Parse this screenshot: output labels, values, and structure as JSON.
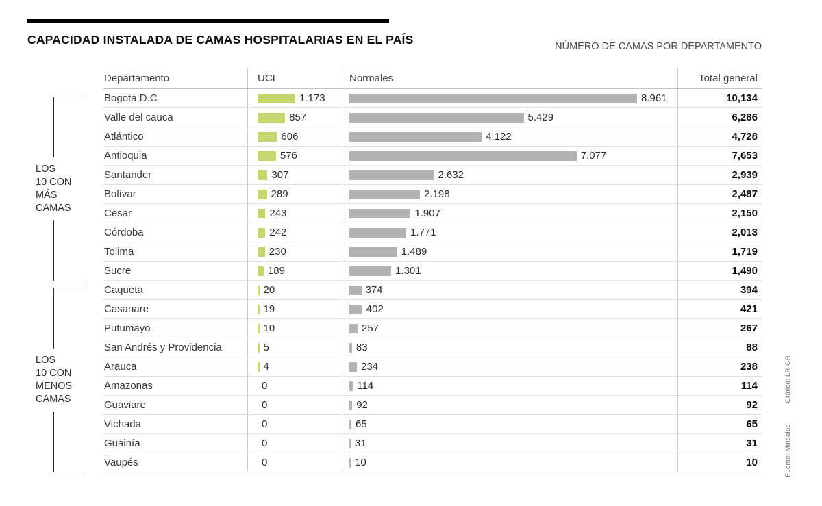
{
  "header": {
    "title": "CAPACIDAD INSTALADA DE CAMAS HOSPITALARIAS EN EL PAÍS",
    "subtitle": "NÚMERO DE CAMAS POR DEPARTAMENTO"
  },
  "columns": {
    "departamento": "Departamento",
    "uci": "UCI",
    "normales": "Normales",
    "total": "Total general"
  },
  "groups": [
    {
      "id": "most",
      "label_lines": [
        "LOS",
        "10 CON",
        "MÁS",
        "CAMAS"
      ],
      "rows": [
        1,
        10
      ]
    },
    {
      "id": "least",
      "label_lines": [
        "LOS",
        "10 CON",
        "MENOS",
        "CAMAS"
      ],
      "rows": [
        11,
        20
      ]
    }
  ],
  "credits": {
    "fuente": "Fuente: Minsalud",
    "grafico": "Gráfico: LR-GR"
  },
  "colors": {
    "uci_bar": "#c5d76e",
    "normales_bar": "#b3b3b3",
    "title_rule": "#000000"
  },
  "chart_data": {
    "type": "bar",
    "title": "CAPACIDAD INSTALADA DE CAMAS HOSPITALARIAS EN EL PAÍS",
    "subtitle": "NÚMERO DE CAMAS POR DEPARTAMENTO",
    "legend_position": "table-columns",
    "categories": [
      "Bogotá D.C",
      "Valle del cauca",
      "Atlántico",
      "Antioquia",
      "Santander",
      "Bolívar",
      "Cesar",
      "Córdoba",
      "Tolima",
      "Sucre",
      "Caquetá",
      "Casanare",
      "Putumayo",
      "San Andrés y Providencia",
      "Arauca",
      "Amazonas",
      "Guaviare",
      "Vichada",
      "Guainía",
      "Vaupés"
    ],
    "series": [
      {
        "name": "UCI",
        "values": [
          1173,
          857,
          606,
          576,
          307,
          289,
          243,
          242,
          230,
          189,
          20,
          19,
          10,
          5,
          4,
          0,
          0,
          0,
          0,
          0
        ]
      },
      {
        "name": "Normales",
        "values": [
          8961,
          5429,
          4122,
          7077,
          2632,
          2198,
          1907,
          1771,
          1489,
          1301,
          374,
          402,
          257,
          83,
          234,
          114,
          92,
          65,
          31,
          10
        ]
      }
    ],
    "totals": [
      10134,
      6286,
      4728,
      7653,
      2939,
      2487,
      2150,
      2013,
      1719,
      1490,
      394,
      421,
      267,
      88,
      238,
      114,
      92,
      65,
      31,
      10
    ],
    "rows": [
      {
        "departamento": "Bogotá D.C",
        "uci": 1173,
        "uci_label": "1.173",
        "normales": 8961,
        "normales_label": "8.961",
        "total": 10134,
        "total_label": "10,134"
      },
      {
        "departamento": "Valle del cauca",
        "uci": 857,
        "uci_label": "857",
        "normales": 5429,
        "normales_label": "5.429",
        "total": 6286,
        "total_label": "6,286"
      },
      {
        "departamento": "Atlántico",
        "uci": 606,
        "uci_label": "606",
        "normales": 4122,
        "normales_label": "4.122",
        "total": 4728,
        "total_label": "4,728"
      },
      {
        "departamento": "Antioquia",
        "uci": 576,
        "uci_label": "576",
        "normales": 7077,
        "normales_label": "7.077",
        "total": 7653,
        "total_label": "7,653"
      },
      {
        "departamento": "Santander",
        "uci": 307,
        "uci_label": "307",
        "normales": 2632,
        "normales_label": "2.632",
        "total": 2939,
        "total_label": "2,939"
      },
      {
        "departamento": "Bolívar",
        "uci": 289,
        "uci_label": "289",
        "normales": 2198,
        "normales_label": "2.198",
        "total": 2487,
        "total_label": "2,487"
      },
      {
        "departamento": "Cesar",
        "uci": 243,
        "uci_label": "243",
        "normales": 1907,
        "normales_label": "1.907",
        "total": 2150,
        "total_label": "2,150"
      },
      {
        "departamento": "Córdoba",
        "uci": 242,
        "uci_label": "242",
        "normales": 1771,
        "normales_label": "1.771",
        "total": 2013,
        "total_label": "2,013"
      },
      {
        "departamento": "Tolima",
        "uci": 230,
        "uci_label": "230",
        "normales": 1489,
        "normales_label": "1.489",
        "total": 1719,
        "total_label": "1,719"
      },
      {
        "departamento": "Sucre",
        "uci": 189,
        "uci_label": "189",
        "normales": 1301,
        "normales_label": "1.301",
        "total": 1490,
        "total_label": "1,490"
      },
      {
        "departamento": "Caquetá",
        "uci": 20,
        "uci_label": "20",
        "normales": 374,
        "normales_label": "374",
        "total": 394,
        "total_label": "394"
      },
      {
        "departamento": "Casanare",
        "uci": 19,
        "uci_label": "19",
        "normales": 402,
        "normales_label": "402",
        "total": 421,
        "total_label": "421"
      },
      {
        "departamento": "Putumayo",
        "uci": 10,
        "uci_label": "10",
        "normales": 257,
        "normales_label": "257",
        "total": 267,
        "total_label": "267"
      },
      {
        "departamento": "San Andrés y Providencia",
        "uci": 5,
        "uci_label": "5",
        "normales": 83,
        "normales_label": "83",
        "total": 88,
        "total_label": "88"
      },
      {
        "departamento": "Arauca",
        "uci": 4,
        "uci_label": "4",
        "normales": 234,
        "normales_label": "234",
        "total": 238,
        "total_label": "238"
      },
      {
        "departamento": "Amazonas",
        "uci": 0,
        "uci_label": "0",
        "normales": 114,
        "normales_label": "114",
        "total": 114,
        "total_label": "114"
      },
      {
        "departamento": "Guaviare",
        "uci": 0,
        "uci_label": "0",
        "normales": 92,
        "normales_label": "92",
        "total": 92,
        "total_label": "92"
      },
      {
        "departamento": "Vichada",
        "uci": 0,
        "uci_label": "0",
        "normales": 65,
        "normales_label": "65",
        "total": 65,
        "total_label": "65"
      },
      {
        "departamento": "Guainía",
        "uci": 0,
        "uci_label": "0",
        "normales": 31,
        "normales_label": "31",
        "total": 31,
        "total_label": "31"
      },
      {
        "departamento": "Vaupés",
        "uci": 0,
        "uci_label": "0",
        "normales": 10,
        "normales_label": "10",
        "total": 10,
        "total_label": "10"
      }
    ]
  }
}
